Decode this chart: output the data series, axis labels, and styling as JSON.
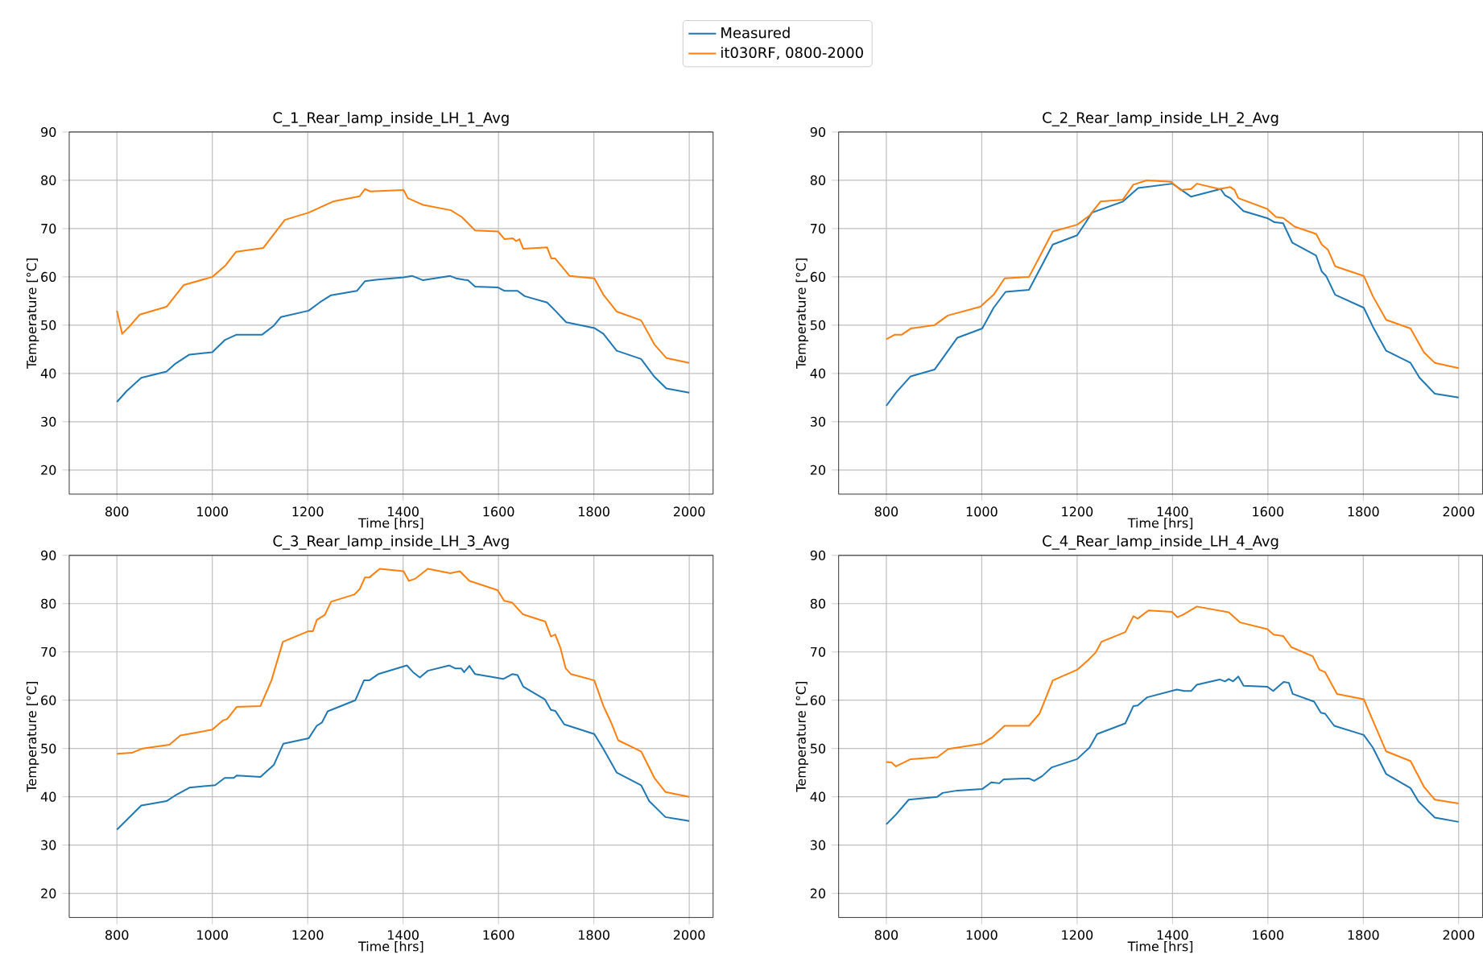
{
  "chart_data": [
    {
      "type": "line",
      "title": "C_1_Rear_lamp_inside_LH_1_Avg",
      "xlabel": "Time [hrs]",
      "ylabel": "Temperature [°C]",
      "xlim": [
        700,
        2050
      ],
      "ylim": [
        15,
        90
      ],
      "xticks": [
        800,
        1000,
        1200,
        1400,
        1600,
        1800,
        2000
      ],
      "yticks": [
        20,
        30,
        40,
        50,
        60,
        70,
        80,
        90
      ],
      "grid": true,
      "legend": "top",
      "series": [
        {
          "name": "Measured",
          "color": "#1f77b4",
          "x": [
            800,
            820,
            851,
            904,
            921,
            952,
            1000,
            1026,
            1050,
            1104,
            1129,
            1144,
            1202,
            1225,
            1249,
            1303,
            1320,
            1343,
            1401,
            1419,
            1442,
            1498,
            1511,
            1528,
            1536,
            1551,
            1599,
            1613,
            1640,
            1655,
            1702,
            1719,
            1742,
            1801,
            1820,
            1848,
            1899,
            1927,
            1952,
            2000
          ],
          "values": [
            34.1,
            36.3,
            39.1,
            40.4,
            41.9,
            43.9,
            44.4,
            46.9,
            48,
            48,
            49.9,
            51.7,
            53,
            54.7,
            56.2,
            57.1,
            59.1,
            59.4,
            59.9,
            60.2,
            59.3,
            60.2,
            59.7,
            59.4,
            59.3,
            58,
            57.8,
            57.1,
            57.1,
            56,
            54.7,
            53,
            50.6,
            49.4,
            48.2,
            44.7,
            43,
            39.3,
            36.9,
            36
          ]
        },
        {
          "name": "it030RF, 0800-2000",
          "color": "#ff7f0e",
          "x": [
            800,
            811,
            826,
            848,
            904,
            940,
            1000,
            1028,
            1050,
            1107,
            1152,
            1202,
            1253,
            1309,
            1320,
            1331,
            1401,
            1410,
            1442,
            1500,
            1523,
            1551,
            1599,
            1613,
            1630,
            1637,
            1644,
            1652,
            1702,
            1711,
            1719,
            1749,
            1801,
            1820,
            1848,
            1899,
            1927,
            1952,
            2000
          ],
          "values": [
            53,
            48.2,
            49.7,
            52.2,
            53.8,
            58.3,
            60,
            62.4,
            65.2,
            66,
            71.8,
            73.3,
            75.6,
            76.7,
            78.2,
            77.7,
            78,
            76.3,
            74.9,
            73.8,
            72.4,
            69.6,
            69.4,
            67.8,
            68,
            67.4,
            67.8,
            65.8,
            66.1,
            63.8,
            63.8,
            60.2,
            59.7,
            56.3,
            52.8,
            51,
            46,
            43.2,
            42.2
          ]
        }
      ]
    },
    {
      "type": "line",
      "title": "C_2_Rear_lamp_inside_LH_2_Avg",
      "xlabel": "Time [hrs]",
      "ylabel": "Temperature [°C]",
      "xlim": [
        700,
        2050
      ],
      "ylim": [
        15,
        90
      ],
      "xticks": [
        800,
        1000,
        1200,
        1400,
        1600,
        1800,
        2000
      ],
      "yticks": [
        20,
        30,
        40,
        50,
        60,
        70,
        80,
        90
      ],
      "grid": true,
      "series": [
        {
          "color": "#1f77b4",
          "x": [
            800,
            820,
            851,
            901,
            949,
            1001,
            1025,
            1050,
            1099,
            1125,
            1149,
            1200,
            1217,
            1231,
            1296,
            1328,
            1400,
            1439,
            1501,
            1510,
            1521,
            1549,
            1600,
            1614,
            1632,
            1651,
            1701,
            1713,
            1722,
            1741,
            1801,
            1820,
            1848,
            1899,
            1918,
            1950,
            2000
          ],
          "values": [
            33.3,
            36,
            39.4,
            40.8,
            47.4,
            49.3,
            53.6,
            56.9,
            57.3,
            62.2,
            66.7,
            68.6,
            71.1,
            73.3,
            75.6,
            78.4,
            79.3,
            76.6,
            78.2,
            76.9,
            76.3,
            73.6,
            72.1,
            71.3,
            71.1,
            67.1,
            64.4,
            61.1,
            60.2,
            56.3,
            53.6,
            49.7,
            44.7,
            42.2,
            39.1,
            35.8,
            35
          ]
        },
        {
          "color": "#ff7f0e",
          "x": [
            800,
            817,
            832,
            851,
            901,
            929,
            997,
            1025,
            1048,
            1099,
            1121,
            1149,
            1200,
            1226,
            1249,
            1296,
            1318,
            1346,
            1397,
            1417,
            1439,
            1451,
            1498,
            1521,
            1530,
            1538,
            1598,
            1617,
            1632,
            1656,
            1701,
            1713,
            1726,
            1741,
            1801,
            1820,
            1848,
            1899,
            1927,
            1950,
            2000
          ],
          "values": [
            47.1,
            48,
            48,
            49.3,
            50,
            52,
            53.8,
            56.3,
            59.7,
            60,
            64.1,
            69.4,
            70.8,
            72.7,
            75.6,
            76,
            79.1,
            80,
            79.7,
            78,
            78.2,
            79.3,
            78.2,
            78.6,
            78,
            76.3,
            74.1,
            72.4,
            72.2,
            70.4,
            68.9,
            66.7,
            65.6,
            62.2,
            60.2,
            56,
            51.1,
            49.3,
            44.4,
            42.2,
            41.1
          ]
        }
      ]
    },
    {
      "type": "line",
      "title": "C_3_Rear_lamp_inside_LH_3_Avg",
      "xlabel": "Time [hrs]",
      "ylabel": "Temperature [°C]",
      "xlim": [
        700,
        2050
      ],
      "ylim": [
        15,
        90
      ],
      "xticks": [
        800,
        1000,
        1200,
        1400,
        1600,
        1800,
        2000
      ],
      "yticks": [
        20,
        30,
        40,
        50,
        60,
        70,
        80,
        90
      ],
      "grid": true,
      "series": [
        {
          "color": "#1f77b4",
          "x": [
            800,
            851,
            904,
            921,
            952,
            1006,
            1026,
            1045,
            1051,
            1101,
            1129,
            1149,
            1202,
            1219,
            1230,
            1242,
            1300,
            1318,
            1329,
            1348,
            1408,
            1421,
            1435,
            1452,
            1497,
            1509,
            1522,
            1528,
            1539,
            1551,
            1610,
            1629,
            1640,
            1652,
            1697,
            1710,
            1719,
            1738,
            1801,
            1820,
            1848,
            1899,
            1916,
            1950,
            2000
          ],
          "values": [
            33.2,
            38.2,
            39.1,
            40.2,
            41.9,
            42.4,
            43.9,
            43.9,
            44.4,
            44.1,
            46.6,
            51,
            52.1,
            54.7,
            55.4,
            57.7,
            60,
            64.1,
            64.1,
            65.4,
            67.2,
            65.8,
            64.7,
            66.1,
            67.2,
            66.6,
            66.6,
            65.8,
            67.1,
            65.4,
            64.4,
            65.4,
            65.2,
            62.8,
            60.2,
            58,
            57.8,
            55,
            53,
            49.9,
            45,
            42.4,
            39.1,
            35.8,
            35
          ]
        },
        {
          "color": "#ff7f0e",
          "x": [
            800,
            831,
            854,
            910,
            933,
            1000,
            1022,
            1031,
            1051,
            1101,
            1124,
            1148,
            1202,
            1211,
            1219,
            1236,
            1249,
            1298,
            1309,
            1320,
            1329,
            1351,
            1401,
            1412,
            1426,
            1452,
            1499,
            1519,
            1539,
            1598,
            1612,
            1629,
            1651,
            1698,
            1710,
            1719,
            1730,
            1741,
            1752,
            1801,
            1820,
            1837,
            1851,
            1899,
            1927,
            1950,
            2000
          ],
          "values": [
            48.9,
            49.1,
            50,
            50.8,
            52.7,
            53.9,
            55.8,
            56.1,
            58.6,
            58.8,
            64.1,
            72.1,
            74.3,
            74.3,
            76.6,
            77.7,
            80.4,
            81.9,
            83,
            85.4,
            85.4,
            87.2,
            86.7,
            84.7,
            85.2,
            87.2,
            86.3,
            86.7,
            84.7,
            82.8,
            80.6,
            80.2,
            77.8,
            76.3,
            73.2,
            73.6,
            70.8,
            66.6,
            65.4,
            64.1,
            58.8,
            55.2,
            51.7,
            49.4,
            43.9,
            41,
            40
          ]
        }
      ]
    },
    {
      "type": "line",
      "title": "C_4_Rear_lamp_inside_LH_4_Avg",
      "xlabel": "Time [hrs]",
      "ylabel": "Temperature [°C]",
      "xlim": [
        700,
        2050
      ],
      "ylim": [
        15,
        90
      ],
      "xticks": [
        800,
        1000,
        1200,
        1400,
        1600,
        1800,
        2000
      ],
      "yticks": [
        20,
        30,
        40,
        50,
        60,
        70,
        80,
        90
      ],
      "grid": true,
      "series": [
        {
          "color": "#1f77b4",
          "x": [
            800,
            820,
            847,
            907,
            918,
            949,
            1001,
            1020,
            1037,
            1046,
            1099,
            1110,
            1127,
            1147,
            1200,
            1226,
            1242,
            1301,
            1318,
            1327,
            1347,
            1409,
            1425,
            1439,
            1451,
            1499,
            1510,
            1518,
            1527,
            1538,
            1549,
            1599,
            1611,
            1633,
            1644,
            1652,
            1697,
            1711,
            1720,
            1739,
            1801,
            1820,
            1848,
            1899,
            1916,
            1950,
            2000
          ],
          "values": [
            34.3,
            36.3,
            39.4,
            40,
            40.8,
            41.3,
            41.6,
            43,
            42.8,
            43.6,
            43.8,
            43.3,
            44.3,
            46.1,
            47.8,
            50.2,
            53,
            55.2,
            58.8,
            58.9,
            60.6,
            62.2,
            61.9,
            61.9,
            63.2,
            64.3,
            63.9,
            64.4,
            63.9,
            64.9,
            63,
            62.8,
            61.9,
            63.8,
            63.6,
            61.3,
            59.7,
            57.4,
            57.2,
            54.7,
            52.8,
            50.2,
            44.7,
            41.8,
            39,
            35.7,
            34.8
          ]
        },
        {
          "color": "#ff7f0e",
          "x": [
            800,
            811,
            820,
            851,
            907,
            930,
            1001,
            1023,
            1048,
            1099,
            1121,
            1149,
            1200,
            1223,
            1239,
            1251,
            1301,
            1318,
            1327,
            1350,
            1399,
            1410,
            1422,
            1451,
            1518,
            1542,
            1599,
            1612,
            1632,
            1649,
            1694,
            1708,
            1720,
            1745,
            1801,
            1820,
            1848,
            1899,
            1927,
            1950,
            2000
          ],
          "values": [
            47.2,
            47.1,
            46.3,
            47.8,
            48.2,
            49.9,
            51,
            52.4,
            54.7,
            54.7,
            57.2,
            64.1,
            66.3,
            68.3,
            69.9,
            72.1,
            74.1,
            77.4,
            76.9,
            78.6,
            78.3,
            77.2,
            77.7,
            79.4,
            78.2,
            76.1,
            74.7,
            73.6,
            73.3,
            71,
            69.1,
            66.3,
            65.8,
            61.3,
            60.2,
            55.8,
            49.4,
            47.4,
            42.1,
            39.4,
            38.6
          ]
        }
      ]
    }
  ]
}
